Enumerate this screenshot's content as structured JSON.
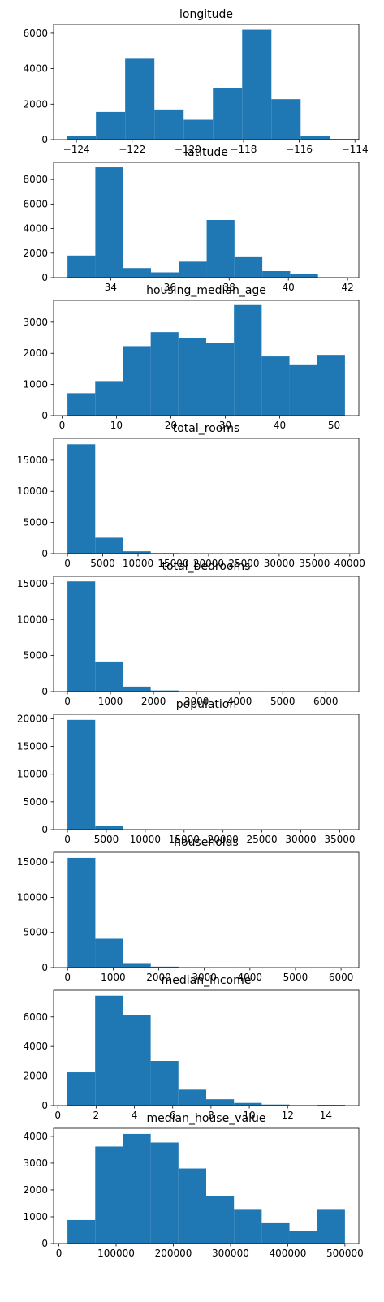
{
  "colors": {
    "bar": "#1f77b4",
    "axes": "#000000",
    "background": "#ffffff"
  },
  "chart_data": [
    {
      "type": "bar",
      "title": "longitude",
      "xlim": [
        -124.82,
        -113.86
      ],
      "ylim": [
        0,
        6500
      ],
      "xticks": [
        -124,
        -122,
        -120,
        -118,
        -116,
        -114
      ],
      "xtick_labels": [
        "−124",
        "−122",
        "−120",
        "−118",
        "−116",
        "−114"
      ],
      "yticks": [
        0,
        2000,
        4000,
        6000
      ],
      "ytick_labels": [
        "0",
        "2000",
        "4000",
        "6000"
      ],
      "bin_edges": [
        -124.35,
        -123.3,
        -122.25,
        -121.2,
        -120.15,
        -119.1,
        -118.05,
        -117.0,
        -115.95,
        -114.9,
        -113.85
      ],
      "values": [
        230,
        1560,
        4560,
        1700,
        1120,
        2900,
        6200,
        2280,
        230,
        40
      ]
    },
    {
      "type": "bar",
      "title": "latitude",
      "xlim": [
        32.07,
        42.38
      ],
      "ylim": [
        0,
        9400
      ],
      "xticks": [
        34,
        36,
        38,
        40,
        42
      ],
      "xtick_labels": [
        "34",
        "36",
        "38",
        "40",
        "42"
      ],
      "yticks": [
        0,
        2000,
        4000,
        6000,
        8000
      ],
      "ytick_labels": [
        "0",
        "2000",
        "4000",
        "6000",
        "8000"
      ],
      "bin_edges": [
        32.54,
        33.48,
        34.42,
        35.36,
        36.3,
        37.24,
        38.18,
        39.12,
        40.06,
        41.0,
        41.95
      ],
      "values": [
        1800,
        9000,
        780,
        430,
        1300,
        4700,
        1730,
        530,
        330,
        30
      ]
    },
    {
      "type": "bar",
      "title": "housing_median_age",
      "xlim": [
        -1.55,
        54.55
      ],
      "ylim": [
        0,
        3700
      ],
      "xticks": [
        0,
        10,
        20,
        30,
        40,
        50
      ],
      "xtick_labels": [
        "0",
        "10",
        "20",
        "30",
        "40",
        "50"
      ],
      "yticks": [
        0,
        1000,
        2000,
        3000
      ],
      "ytick_labels": [
        "0",
        "1000",
        "2000",
        "3000"
      ],
      "bin_edges": [
        1,
        6.1,
        11.2,
        16.3,
        21.4,
        26.5,
        31.6,
        36.7,
        41.8,
        46.9,
        52
      ],
      "values": [
        720,
        1110,
        2230,
        2680,
        2490,
        2330,
        3550,
        1900,
        1620,
        1950
      ]
    },
    {
      "type": "bar",
      "title": "total_rooms",
      "xlim": [
        -1965,
        41286
      ],
      "ylim": [
        0,
        18500
      ],
      "xticks": [
        0,
        5000,
        10000,
        15000,
        20000,
        25000,
        30000,
        35000,
        40000
      ],
      "xtick_labels": [
        "0",
        "5000",
        "10000",
        "15000",
        "20000",
        "25000",
        "30000",
        "35000",
        "40000"
      ],
      "yticks": [
        0,
        5000,
        10000,
        15000
      ],
      "ytick_labels": [
        "0",
        "5000",
        "10000",
        "15000"
      ],
      "bin_edges": [
        2,
        3934,
        7866,
        11798,
        15730,
        19662,
        23594,
        27526,
        31458,
        35390,
        39320
      ],
      "values": [
        17550,
        2550,
        370,
        90,
        30,
        15,
        5,
        5,
        3,
        2
      ]
    },
    {
      "type": "bar",
      "title": "total_bedrooms",
      "xlim": [
        -321,
        6768
      ],
      "ylim": [
        0,
        16000
      ],
      "xticks": [
        0,
        1000,
        2000,
        3000,
        4000,
        5000,
        6000
      ],
      "xtick_labels": [
        "0",
        "1000",
        "2000",
        "3000",
        "4000",
        "5000",
        "6000"
      ],
      "yticks": [
        0,
        5000,
        10000,
        15000
      ],
      "ytick_labels": [
        "0",
        "5000",
        "10000",
        "15000"
      ],
      "bin_edges": [
        1,
        645,
        1290,
        1934,
        2579,
        3223,
        3868,
        4512,
        5157,
        5801,
        6445
      ],
      "values": [
        15300,
        4180,
        690,
        150,
        50,
        20,
        8,
        4,
        2,
        2
      ]
    },
    {
      "type": "bar",
      "title": "population",
      "xlim": [
        -1780,
        37460
      ],
      "ylim": [
        0,
        20800
      ],
      "xticks": [
        0,
        5000,
        10000,
        15000,
        20000,
        25000,
        30000,
        35000
      ],
      "xtick_labels": [
        "0",
        "5000",
        "10000",
        "15000",
        "20000",
        "25000",
        "30000",
        "35000"
      ],
      "yticks": [
        0,
        5000,
        10000,
        15000,
        20000
      ],
      "ytick_labels": [
        "0",
        "5000",
        "10000",
        "15000",
        "20000"
      ],
      "bin_edges": [
        3,
        3571,
        7139,
        10707,
        14275,
        17843,
        21411,
        24979,
        28547,
        32115,
        35682
      ],
      "values": [
        19800,
        700,
        60,
        15,
        5,
        3,
        2,
        1,
        1,
        1
      ]
    },
    {
      "type": "bar",
      "title": "households",
      "xlim": [
        -307,
        6390
      ],
      "ylim": [
        0,
        16400
      ],
      "xticks": [
        0,
        1000,
        2000,
        3000,
        4000,
        5000,
        6000
      ],
      "xtick_labels": [
        "0",
        "1000",
        "2000",
        "3000",
        "4000",
        "5000",
        "6000"
      ],
      "yticks": [
        0,
        5000,
        10000,
        15000
      ],
      "ytick_labels": [
        "0",
        "5000",
        "10000",
        "15000"
      ],
      "bin_edges": [
        1,
        609,
        1217,
        1826,
        2434,
        3043,
        3651,
        4260,
        4868,
        5477,
        6085
      ],
      "values": [
        15600,
        4100,
        640,
        130,
        40,
        15,
        8,
        3,
        2,
        2
      ]
    },
    {
      "type": "bar",
      "title": "median_income",
      "xlim": [
        -0.22,
        15.72
      ],
      "ylim": [
        0,
        7800
      ],
      "xticks": [
        0,
        2,
        4,
        6,
        8,
        10,
        12,
        14
      ],
      "xtick_labels": [
        "0",
        "2",
        "4",
        "6",
        "8",
        "10",
        "12",
        "14"
      ],
      "yticks": [
        0,
        2000,
        4000,
        6000
      ],
      "ytick_labels": [
        "0",
        "2000",
        "4000",
        "6000"
      ],
      "bin_edges": [
        0.5,
        1.95,
        3.4,
        4.85,
        6.3,
        7.75,
        9.2,
        10.65,
        12.1,
        13.55,
        15.0
      ],
      "values": [
        2250,
        7430,
        6100,
        3020,
        1080,
        430,
        180,
        70,
        30,
        50
      ]
    },
    {
      "type": "bar",
      "title": "median_house_value",
      "xlim": [
        -9260,
        524270
      ],
      "ylim": [
        0,
        4300
      ],
      "xticks": [
        0,
        100000,
        200000,
        300000,
        400000,
        500000
      ],
      "xtick_labels": [
        "0",
        "100000",
        "200000",
        "300000",
        "400000",
        "500000"
      ],
      "yticks": [
        0,
        1000,
        2000,
        3000,
        4000
      ],
      "ytick_labels": [
        "0",
        "1000",
        "2000",
        "3000",
        "4000"
      ],
      "bin_edges": [
        14999,
        63499,
        111999,
        160499,
        208999,
        257499,
        305999,
        354499,
        402999,
        451499,
        500001
      ],
      "values": [
        880,
        3620,
        4090,
        3770,
        2800,
        1760,
        1260,
        760,
        480,
        1260
      ]
    }
  ]
}
